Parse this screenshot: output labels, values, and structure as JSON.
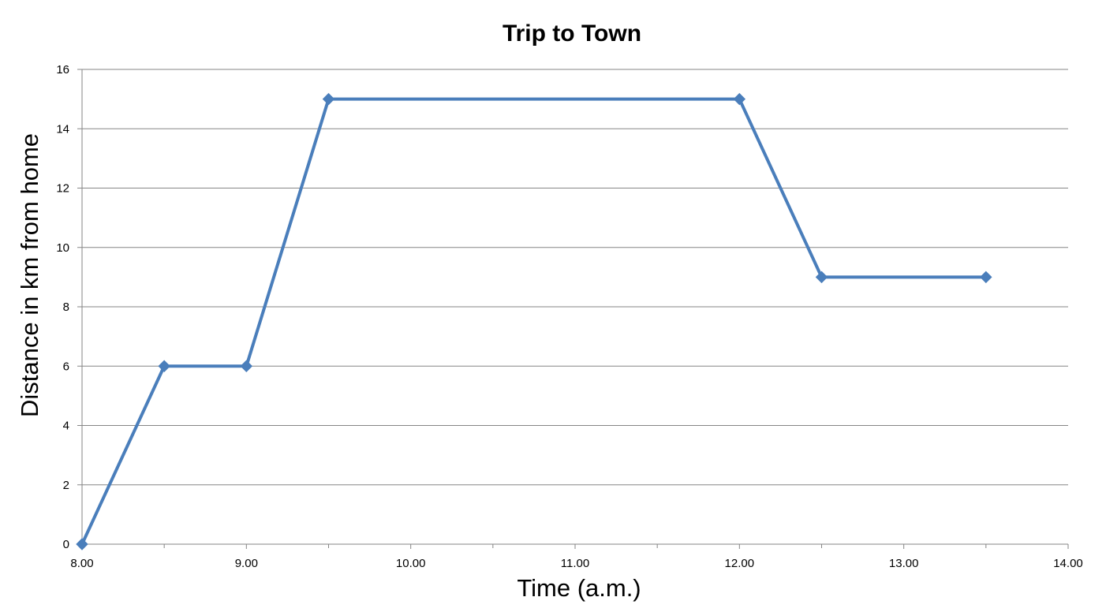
{
  "chart_data": {
    "type": "line",
    "title": "Trip to Town",
    "xlabel": "Time (a.m.)",
    "ylabel": "Distance in km from home",
    "x_tick_labels": [
      "8.00",
      "9.00",
      "10.00",
      "11.00",
      "12.00",
      "13.00",
      "14.00"
    ],
    "x_ticks": [
      8,
      9,
      10,
      11,
      12,
      13,
      14
    ],
    "y_tick_labels": [
      "0",
      "2",
      "4",
      "6",
      "8",
      "10",
      "12",
      "14",
      "16"
    ],
    "y_ticks": [
      0,
      2,
      4,
      6,
      8,
      10,
      12,
      14,
      16
    ],
    "xlim": [
      8,
      14
    ],
    "ylim": [
      0,
      16
    ],
    "grid": "horizontal",
    "legend": "none",
    "series": [
      {
        "color": "#4a7ebb",
        "marker": "diamond",
        "x": [
          8.0,
          8.5,
          9.0,
          9.5,
          12.0,
          12.5,
          13.5
        ],
        "y": [
          0,
          6,
          6,
          15,
          15,
          9,
          9
        ]
      }
    ]
  }
}
